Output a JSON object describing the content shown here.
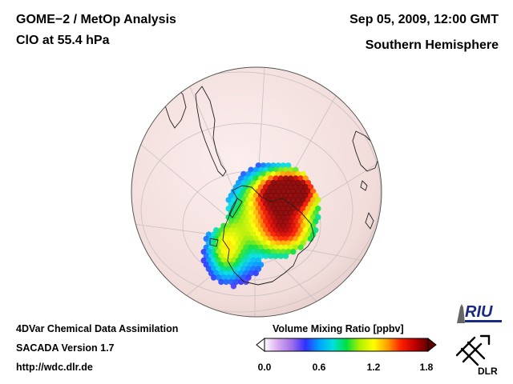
{
  "header": {
    "title": "GOME−2 / MetOp Analysis",
    "species": "ClO at 55.4 hPa",
    "datetime": "Sep 05, 2009, 12:00 GMT",
    "region": "Southern Hemisphere"
  },
  "footer": {
    "method": "4DVar Chemical Data Assimilation",
    "version": "SACADA Version 1.7",
    "url": "http://wdc.dlr.de"
  },
  "colorbar": {
    "title": "Volume Mixing Ratio [ppbv]",
    "min": 0.0,
    "max": 1.8,
    "ticks": [
      "0.0",
      "0.6",
      "1.2",
      "1.8"
    ],
    "tick_values": [
      0.0,
      0.6,
      1.2,
      1.8
    ],
    "stops": [
      "#ffffff",
      "#d8a8f0",
      "#a070e8",
      "#3030ff",
      "#00a0ff",
      "#00e0e0",
      "#00e040",
      "#b0f000",
      "#ffff00",
      "#ffa000",
      "#ff2000",
      "#c00000",
      "#600000"
    ]
  },
  "logos": {
    "riu": "RIU",
    "dlr": "DLR"
  },
  "colors": {
    "ocean": "#f6e6e4",
    "grid": "#c8c0c0",
    "coast": "#202020"
  }
}
